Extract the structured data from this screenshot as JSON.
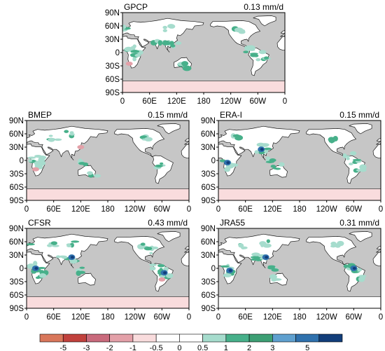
{
  "colors": {
    "ocean": "#c6c6c6",
    "land": "#ffffff",
    "coast": "#1a1a1a",
    "scale": [
      "#d9775b",
      "#c1413d",
      "#c96a7c",
      "#e3a0a8",
      "#f9dcdd",
      "#ffffff",
      "#ffffff",
      "#a6dccd",
      "#47b08a",
      "#3d9f74",
      "#5fa0cf",
      "#2f71ad",
      "#123e7a"
    ]
  },
  "chart_data": {
    "type": "heatmap",
    "units": "mm/d",
    "panels": [
      {
        "title": "GPCP",
        "value": "0.13 mm/d",
        "show_y_ticks": true,
        "wet_regions": [
          [
            20,
            10
          ],
          [
            30,
            0
          ],
          [
            25,
            -10
          ],
          [
            95,
            20
          ],
          [
            120,
            15
          ],
          [
            -60,
            -5
          ],
          [
            -50,
            -15
          ],
          [
            80,
            25
          ],
          [
            0,
            55
          ],
          [
            100,
            55
          ],
          [
            -100,
            50
          ],
          [
            140,
            -30
          ],
          [
            -80,
            5
          ]
        ],
        "dry_regions": [
          [
            15,
            -25
          ]
        ],
        "antarctic": "pink"
      },
      {
        "title": "BMEP",
        "value": "0.15 mm/d",
        "show_y_ticks": true,
        "wet_regions": [
          [
            15,
            0
          ],
          [
            25,
            -10
          ],
          [
            30,
            5
          ],
          [
            60,
            50
          ],
          [
            90,
            60
          ],
          [
            -100,
            50
          ],
          [
            120,
            -5
          ],
          [
            -60,
            -10
          ],
          [
            150,
            -30
          ]
        ],
        "dry_regions": [
          [
            20,
            -20
          ],
          [
            120,
            30
          ]
        ],
        "antarctic": "pink"
      },
      {
        "title": "ERA-I",
        "value": "0.15 mm/d",
        "show_y_ticks": true,
        "wet_regions": [
          [
            20,
            -5
          ],
          [
            30,
            -15
          ],
          [
            95,
            20
          ],
          [
            100,
            30
          ],
          [
            -60,
            -5
          ],
          [
            -50,
            -20
          ],
          [
            -70,
            10
          ],
          [
            120,
            0
          ],
          [
            40,
            55
          ],
          [
            -100,
            45
          ],
          [
            130,
            -15
          ]
        ],
        "strong_regions": [
          [
            20,
            -5
          ],
          [
            95,
            25
          ]
        ],
        "dry_regions": [],
        "antarctic": "pink"
      },
      {
        "title": "CFSR",
        "value": "0.43 mm/d",
        "show_y_ticks": true,
        "wet_regions": [
          [
            15,
            5
          ],
          [
            25,
            -5
          ],
          [
            35,
            -15
          ],
          [
            80,
            25
          ],
          [
            100,
            20
          ],
          [
            -60,
            -5
          ],
          [
            -50,
            -20
          ],
          [
            -70,
            5
          ],
          [
            0,
            55
          ],
          [
            60,
            55
          ],
          [
            100,
            55
          ],
          [
            -100,
            50
          ],
          [
            -80,
            40
          ],
          [
            120,
            -5
          ]
        ],
        "strong_regions": [
          [
            20,
            0
          ],
          [
            -55,
            -10
          ],
          [
            100,
            25
          ]
        ],
        "dry_regions": [
          [
            -60,
            -25
          ]
        ],
        "antarctic": "pink"
      },
      {
        "title": "JRA55",
        "value": "0.31 mm/d",
        "show_y_ticks": true,
        "wet_regions": [
          [
            20,
            0
          ],
          [
            30,
            -10
          ],
          [
            80,
            25
          ],
          [
            100,
            25
          ],
          [
            -60,
            -5
          ],
          [
            -50,
            -20
          ],
          [
            -70,
            5
          ],
          [
            50,
            50
          ],
          [
            100,
            55
          ],
          [
            -100,
            50
          ],
          [
            130,
            -20
          ],
          [
            120,
            0
          ]
        ],
        "strong_regions": [
          [
            25,
            -5
          ],
          [
            105,
            25
          ],
          [
            -60,
            0
          ]
        ],
        "dry_regions": [],
        "antarctic": "none"
      }
    ],
    "x_ticks": [
      "0",
      "60E",
      "120E",
      "180",
      "120W",
      "60W",
      "0"
    ],
    "y_ticks": [
      "90N",
      "60N",
      "30N",
      "0",
      "30S",
      "60S",
      "90S"
    ],
    "colorbar_ticks": [
      "-5",
      "-3",
      "-2",
      "-1",
      "-0.5",
      "0",
      "0.5",
      "1",
      "2",
      "3",
      "5"
    ]
  }
}
